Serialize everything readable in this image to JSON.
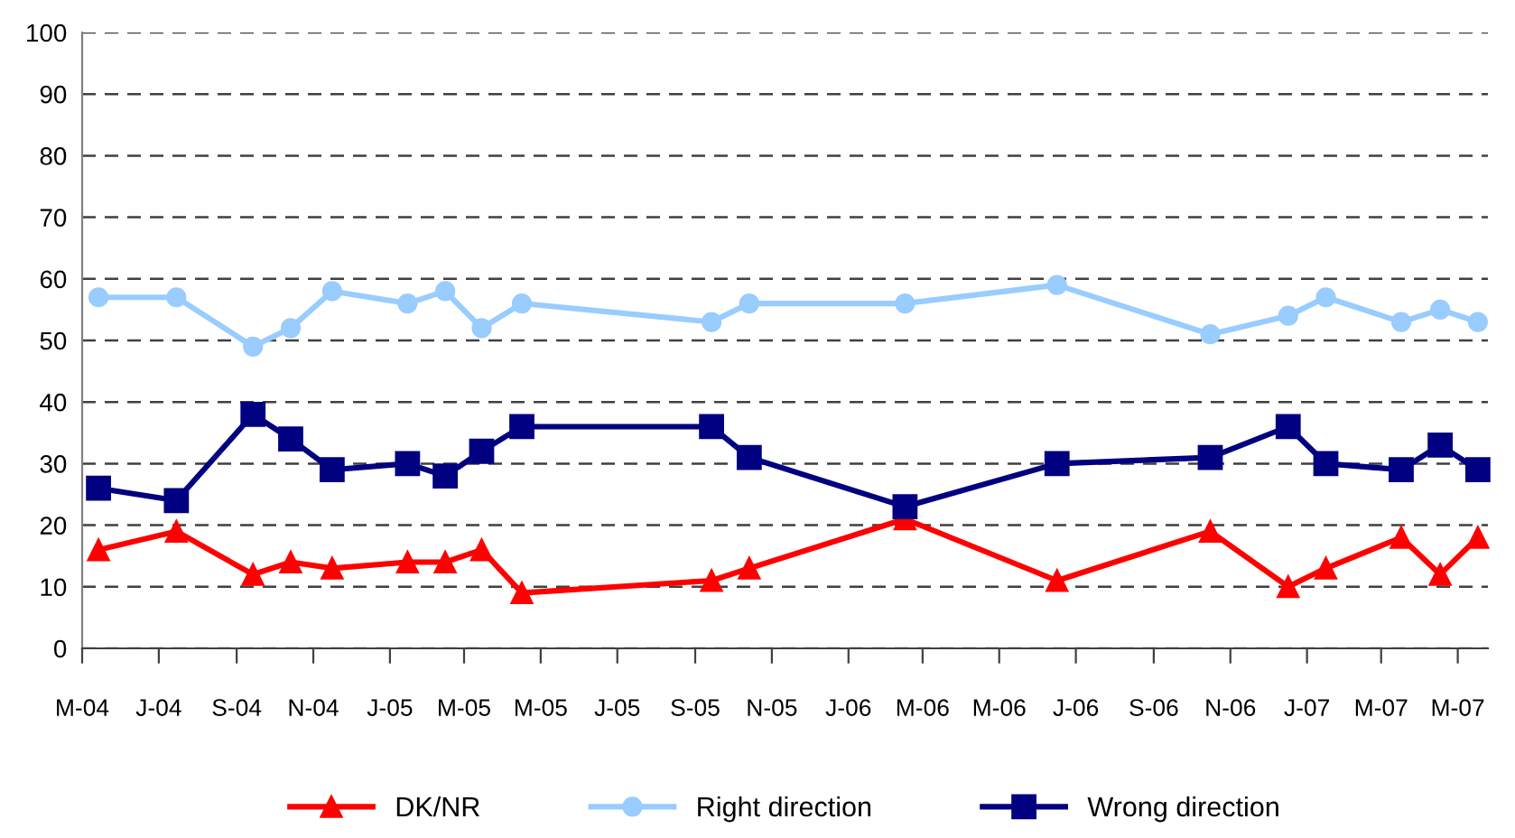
{
  "chart_data": {
    "type": "line",
    "x": [
      "2004-05-14",
      "2004-07-15",
      "2004-09-14",
      "2004-10-14",
      "2004-11-16",
      "2005-01-15",
      "2005-02-14",
      "2005-03-15",
      "2005-04-16",
      "2005-09-14",
      "2005-10-14",
      "2006-02-15",
      "2006-06-16",
      "2006-10-16",
      "2006-12-17",
      "2007-01-16",
      "2007-03-17",
      "2007-04-17",
      "2007-05-17"
    ],
    "series": [
      {
        "name": "DK/NR",
        "color": "#ff0000",
        "marker": "triangle",
        "values": [
          16,
          19,
          12,
          14,
          13,
          14,
          14,
          16,
          9,
          11,
          13,
          21,
          11,
          19,
          10,
          13,
          18,
          12,
          18
        ]
      },
      {
        "name": "Right direction",
        "color": "#99ccff",
        "marker": "circle",
        "values": [
          57,
          57,
          49,
          52,
          58,
          56,
          58,
          52,
          56,
          53,
          56,
          56,
          59,
          51,
          54,
          57,
          53,
          55,
          53
        ]
      },
      {
        "name": "Wrong direction",
        "color": "#000080",
        "marker": "square",
        "values": [
          26,
          24,
          38,
          34,
          29,
          30,
          28,
          32,
          36,
          36,
          31,
          23,
          30,
          31,
          36,
          30,
          29,
          33,
          29
        ]
      }
    ],
    "xlim": [
      "2004-05-01",
      "2007-05-25"
    ],
    "xticks": [
      {
        "value": "2004-05",
        "label": "M-04"
      },
      {
        "value": "2004-07",
        "label": "J-04"
      },
      {
        "value": "2004-09",
        "label": "S-04"
      },
      {
        "value": "2004-11",
        "label": "N-04"
      },
      {
        "value": "2005-01",
        "label": "J-05"
      },
      {
        "value": "2005-03",
        "label": "M-05"
      },
      {
        "value": "2005-05",
        "label": "M-05"
      },
      {
        "value": "2005-07",
        "label": "J-05"
      },
      {
        "value": "2005-09",
        "label": "S-05"
      },
      {
        "value": "2005-11",
        "label": "N-05"
      },
      {
        "value": "2006-01",
        "label": "J-06"
      },
      {
        "value": "2006-03",
        "label": "M-06"
      },
      {
        "value": "2006-05",
        "label": "M-06"
      },
      {
        "value": "2006-07",
        "label": "J-06"
      },
      {
        "value": "2006-09",
        "label": "S-06"
      },
      {
        "value": "2006-11",
        "label": "N-06"
      },
      {
        "value": "2007-01",
        "label": "J-07"
      },
      {
        "value": "2007-03",
        "label": "M-07"
      },
      {
        "value": "2007-05",
        "label": "M-07"
      }
    ],
    "ylim": [
      0,
      100
    ],
    "yticks": [
      0,
      10,
      20,
      30,
      40,
      50,
      60,
      70,
      80,
      90,
      100
    ],
    "grid": "y",
    "legend": "bottom",
    "line_style": "solid"
  }
}
